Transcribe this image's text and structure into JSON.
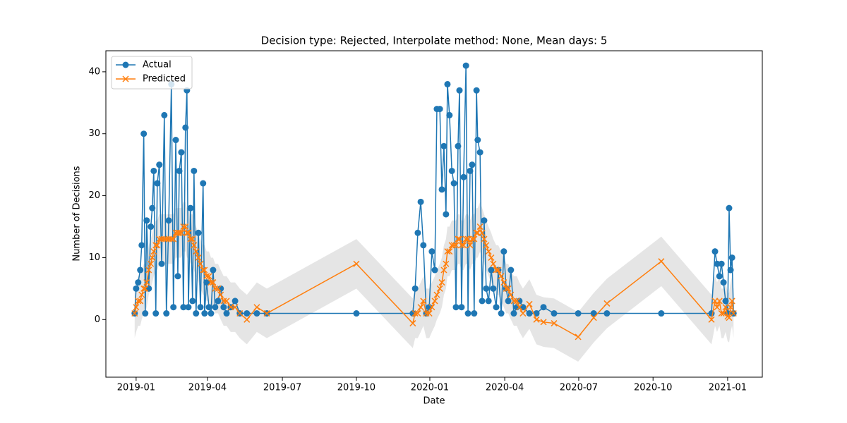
{
  "chart_data": {
    "type": "line",
    "title": "Decision type: Rejected, Interpolate method: None, Mean days: 5",
    "x_label": "Date",
    "y_label": "Number of Decisions",
    "xlim": [
      2018.897,
      2021.132
    ],
    "ylim": [
      -9.3,
      43.4
    ],
    "xticks": [
      {
        "value": 2019.0,
        "label": "2019-01"
      },
      {
        "value": 2019.243,
        "label": "2019-04"
      },
      {
        "value": 2019.498,
        "label": "2019-07"
      },
      {
        "value": 2019.75,
        "label": "2019-10"
      },
      {
        "value": 2020.0,
        "label": "2020-01"
      },
      {
        "value": 2020.255,
        "label": "2020-04"
      },
      {
        "value": 2020.507,
        "label": "2020-07"
      },
      {
        "value": 2020.76,
        "label": "2020-10"
      },
      {
        "value": 2021.014,
        "label": "2021-01"
      }
    ],
    "yticks": [
      0,
      10,
      20,
      30,
      40
    ],
    "legend": "upper left",
    "x": [
      2018.995,
      2019.0,
      2019.007,
      2019.014,
      2019.019,
      2019.026,
      2019.031,
      2019.036,
      2019.043,
      2019.05,
      2019.055,
      2019.06,
      2019.067,
      2019.072,
      2019.079,
      2019.087,
      2019.096,
      2019.103,
      2019.111,
      2019.12,
      2019.127,
      2019.135,
      2019.142,
      2019.147,
      2019.154,
      2019.161,
      2019.168,
      2019.173,
      2019.178,
      2019.185,
      2019.192,
      2019.197,
      2019.204,
      2019.212,
      2019.219,
      2019.228,
      2019.233,
      2019.24,
      2019.248,
      2019.255,
      2019.262,
      2019.269,
      2019.279,
      2019.288,
      2019.298,
      2019.308,
      2019.322,
      2019.337,
      2019.353,
      2019.377,
      2019.411,
      2019.445,
      2019.75,
      2019.942,
      2019.95,
      2019.959,
      2019.969,
      2019.978,
      2019.988,
      2019.998,
      2020.007,
      2020.017,
      2020.024,
      2020.034,
      2020.041,
      2020.048,
      2020.055,
      2020.06,
      2020.067,
      2020.075,
      2020.082,
      2020.089,
      2020.096,
      2020.101,
      2020.108,
      2020.115,
      2020.123,
      2020.13,
      2020.137,
      2020.144,
      2020.151,
      2020.159,
      2020.163,
      2020.171,
      2020.178,
      2020.185,
      2020.192,
      2020.2,
      2020.209,
      2020.216,
      2020.226,
      2020.233,
      2020.243,
      2020.252,
      2020.26,
      2020.267,
      2020.276,
      2020.286,
      2020.296,
      2020.305,
      2020.317,
      2020.339,
      2020.363,
      2020.387,
      2020.423,
      2020.505,
      2020.558,
      2020.603,
      2020.788,
      2020.959,
      2020.971,
      2020.978,
      2020.986,
      2020.993,
      2021.0,
      2021.007,
      2021.014,
      2021.019,
      2021.024,
      2021.029,
      2021.034
    ],
    "series": [
      {
        "name": "Actual",
        "color": "#1f77b4",
        "marker": "o",
        "values": [
          1,
          5,
          6,
          8,
          12,
          30,
          1,
          16,
          5,
          15,
          18,
          24,
          1,
          22,
          25,
          9,
          33,
          1,
          16,
          38,
          2,
          29,
          7,
          24,
          27,
          2,
          31,
          37,
          2,
          18,
          3,
          24,
          1,
          14,
          2,
          22,
          1,
          6,
          2,
          1,
          8,
          2,
          3,
          5,
          2,
          1,
          2,
          3,
          1,
          1,
          1,
          1,
          1,
          1,
          5,
          14,
          19,
          12,
          1,
          2,
          11,
          8,
          34,
          34,
          21,
          28,
          17,
          38,
          33,
          24,
          22,
          2,
          28,
          37,
          2,
          23,
          41,
          1,
          24,
          25,
          1,
          37,
          29,
          27,
          3,
          16,
          5,
          3,
          8,
          5,
          2,
          8,
          1,
          11,
          5,
          3,
          8,
          1,
          2,
          3,
          2,
          1,
          1,
          2,
          1,
          1,
          1,
          1,
          1,
          1,
          11,
          9,
          7,
          9,
          6,
          3,
          1,
          18,
          8,
          10,
          1
        ]
      },
      {
        "name": "Predicted",
        "color": "#ff7f0e",
        "marker": "x",
        "values": [
          1,
          2,
          3,
          3,
          4,
          5,
          5,
          6,
          8,
          9,
          10,
          11,
          12,
          12,
          13,
          13,
          13,
          13,
          13,
          13,
          13,
          14,
          14,
          14,
          14,
          15,
          15,
          14,
          14,
          13,
          13,
          12,
          11,
          10,
          9,
          8,
          8,
          7,
          7,
          6,
          6,
          5,
          5,
          4,
          3,
          3,
          2,
          2,
          1,
          0,
          2,
          1,
          9,
          -0.6,
          1,
          1,
          2,
          3,
          1,
          1,
          2,
          3,
          4,
          5,
          6,
          8,
          9,
          11,
          11,
          12,
          12,
          12,
          13,
          13,
          12,
          12,
          13,
          13,
          12,
          13,
          13,
          14,
          14,
          15,
          14,
          13,
          12,
          11,
          10,
          9,
          8,
          8,
          7,
          6,
          5,
          5,
          4,
          3,
          3,
          2,
          1,
          2.5,
          0,
          -0.4,
          -0.6,
          -2.8,
          0.3,
          2.6,
          9.4,
          0,
          3,
          2,
          3,
          1,
          1,
          2,
          0.5,
          0.3,
          2,
          3,
          1
        ]
      }
    ],
    "interval": {
      "color": "#d3d3d3",
      "lower": [
        -3,
        -2,
        -1,
        -1,
        0,
        1,
        1,
        2,
        4,
        5,
        6,
        7,
        8,
        8,
        9,
        9,
        9,
        9,
        9,
        9,
        9,
        10,
        10,
        10,
        10,
        11,
        11,
        10,
        10,
        9,
        9,
        8,
        7,
        6,
        5,
        4,
        4,
        3,
        3,
        2,
        2,
        1,
        1,
        0,
        -1,
        -1,
        -2,
        -2,
        -3,
        -4,
        -2,
        -3,
        5,
        -4.6,
        -3,
        -3,
        -2,
        -1,
        -3,
        -3,
        -2,
        -1,
        0,
        1,
        2,
        4,
        5,
        7,
        7,
        8,
        8,
        8,
        9,
        9,
        8,
        8,
        9,
        9,
        8,
        9,
        9,
        10,
        10,
        11,
        10,
        9,
        8,
        7,
        6,
        5,
        4,
        4,
        3,
        2,
        1,
        1,
        0,
        -1,
        -1,
        -2,
        -3,
        -1.5,
        -4,
        -4.4,
        -4.6,
        -6.8,
        -3.7,
        -1.4,
        5.4,
        -4,
        -1,
        -2,
        -1,
        -3,
        -3,
        -2,
        -3.5,
        -3.7,
        -2,
        -1,
        -3
      ],
      "upper": [
        5,
        6,
        7,
        7,
        8,
        9,
        9,
        10,
        12,
        13,
        14,
        15,
        16,
        16,
        17,
        17,
        17,
        17,
        17,
        17,
        17,
        18,
        18,
        18,
        18,
        19,
        19,
        18,
        18,
        17,
        17,
        16,
        15,
        14,
        13,
        12,
        12,
        11,
        11,
        10,
        10,
        9,
        9,
        8,
        7,
        7,
        6,
        6,
        5,
        4,
        6,
        5,
        13,
        3.4,
        5,
        5,
        6,
        7,
        5,
        5,
        6,
        7,
        8,
        9,
        10,
        12,
        13,
        15,
        15,
        16,
        16,
        16,
        17,
        17,
        16,
        16,
        17,
        17,
        16,
        17,
        17,
        18,
        18,
        19,
        18,
        17,
        16,
        15,
        14,
        13,
        12,
        12,
        11,
        10,
        9,
        9,
        8,
        7,
        7,
        6,
        5,
        6.5,
        4,
        3.6,
        3.4,
        1.2,
        4.3,
        6.6,
        13.4,
        4,
        7,
        6,
        7,
        5,
        5,
        6,
        4.5,
        4.3,
        6,
        7,
        5
      ]
    }
  }
}
